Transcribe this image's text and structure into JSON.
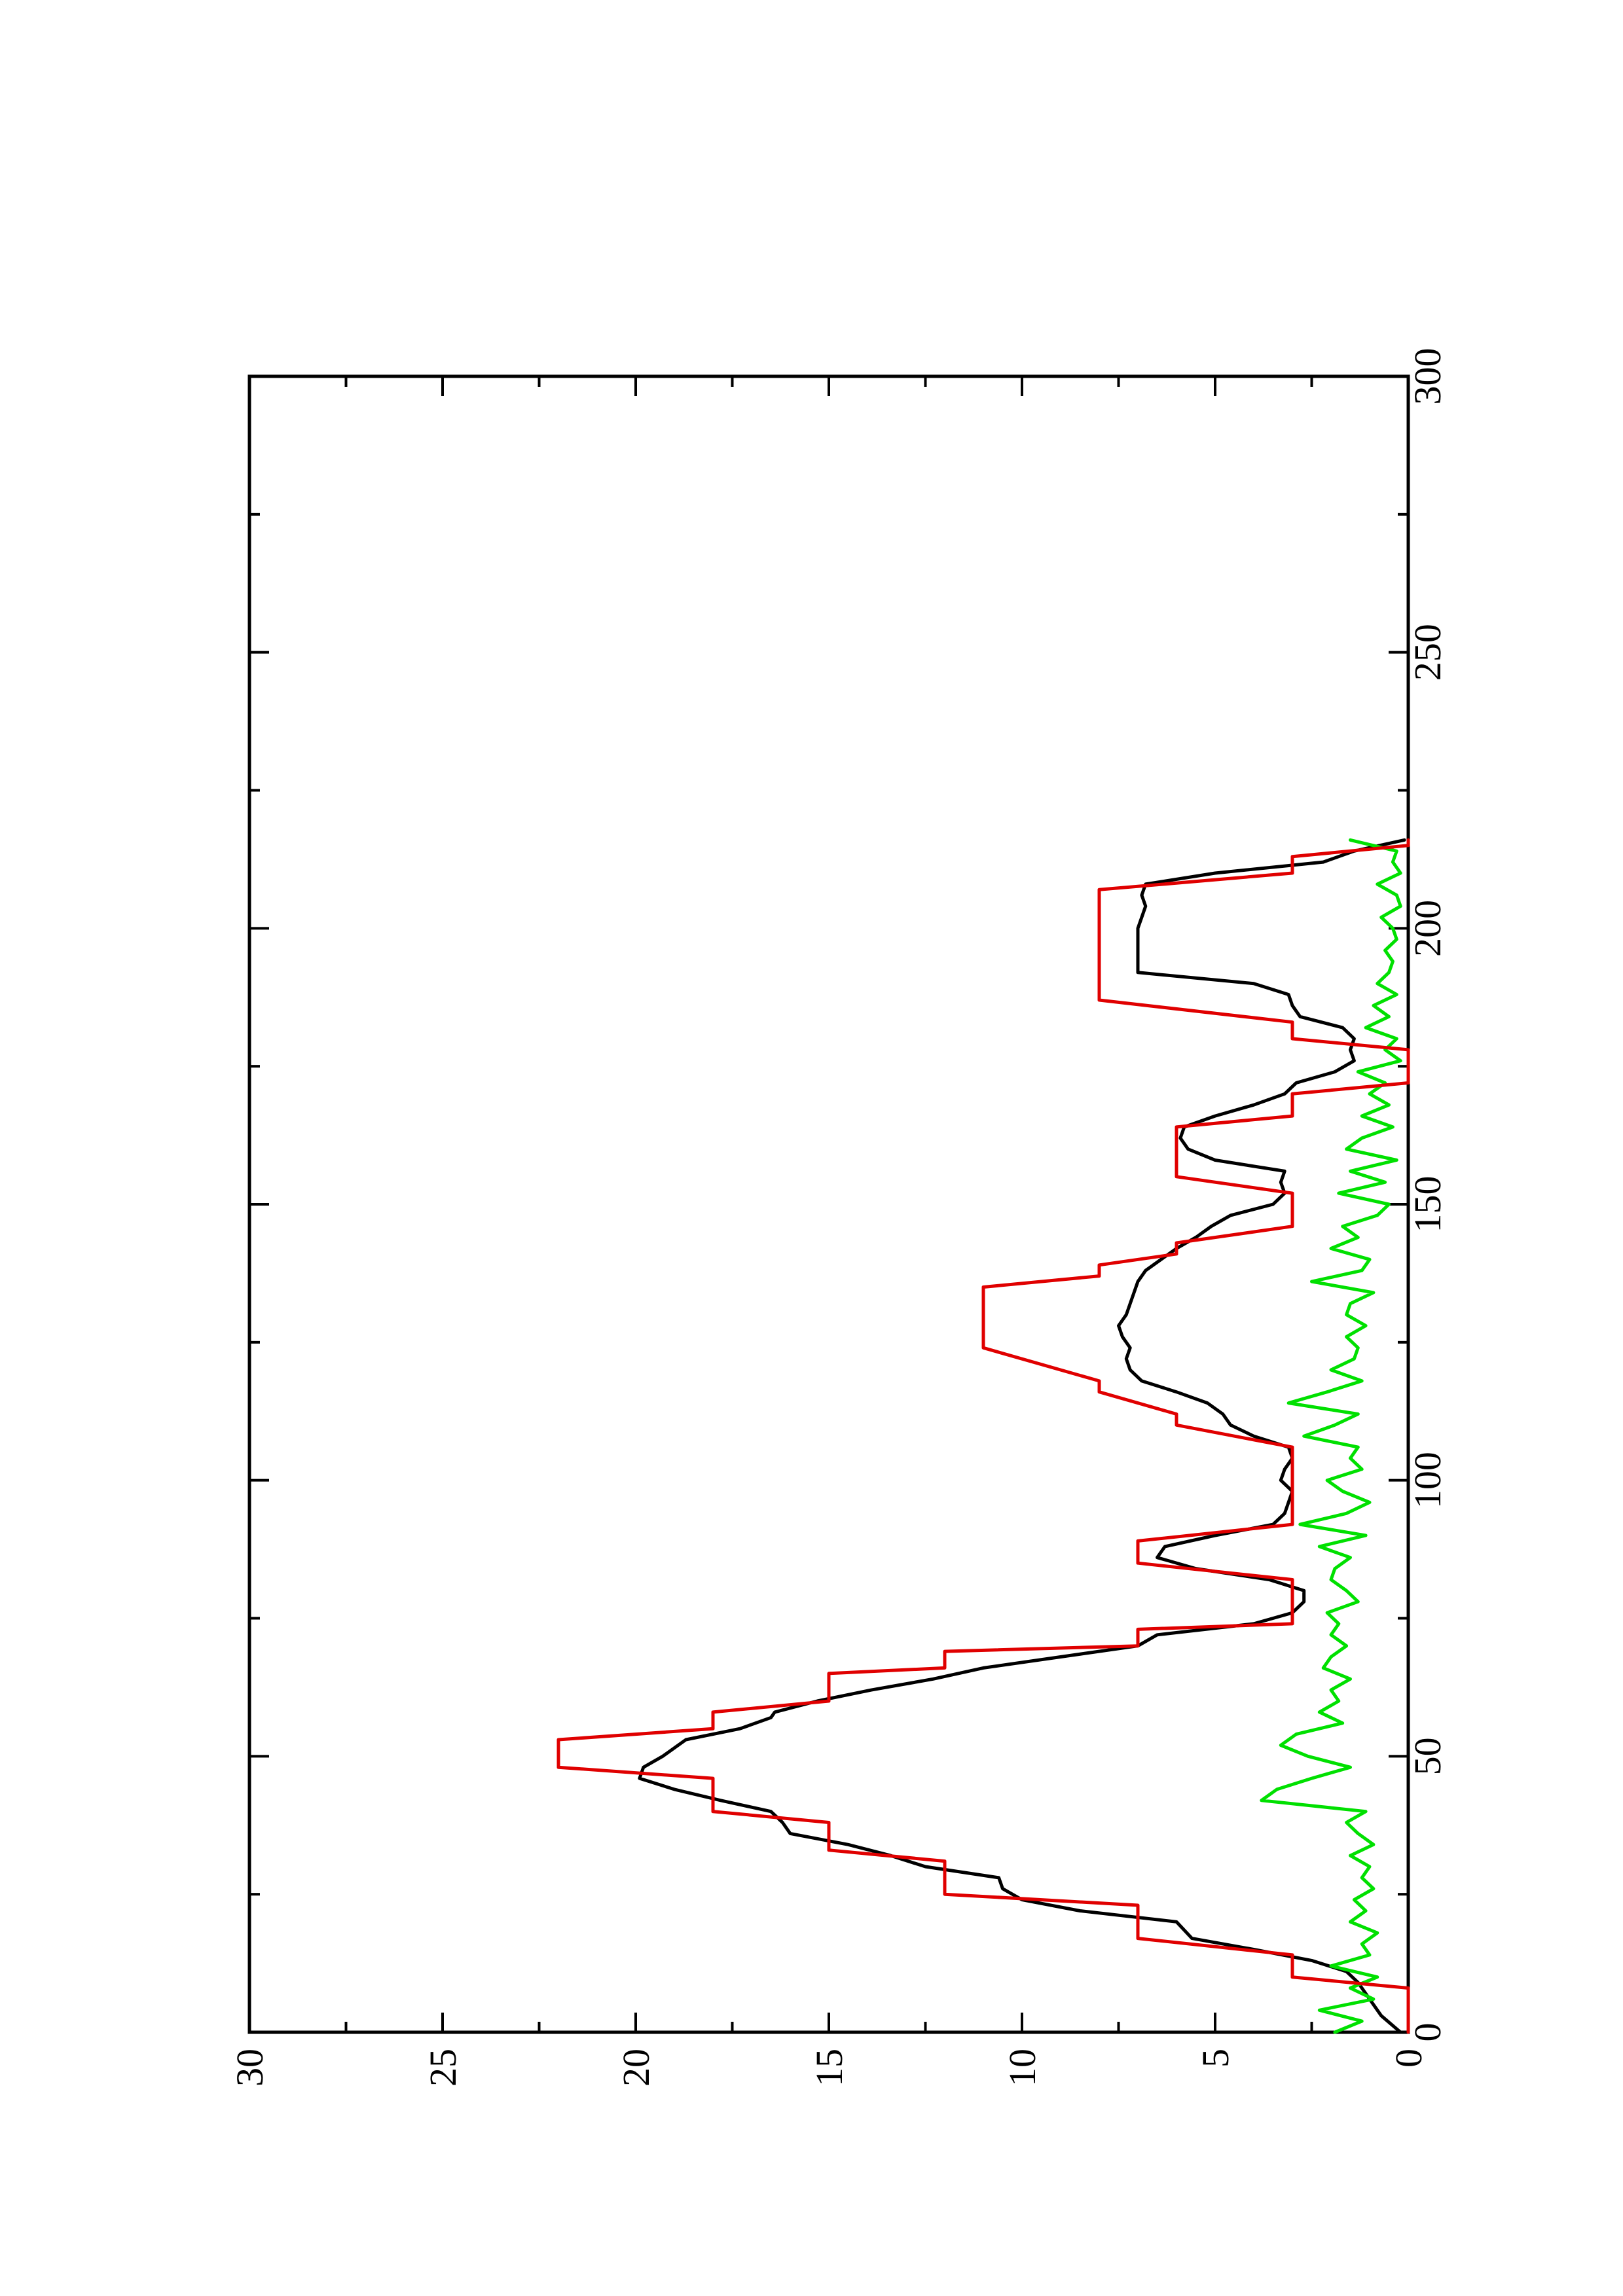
{
  "chart_data": {
    "type": "line",
    "orientation": "rotated-90-ccw",
    "title": "",
    "xlabel": "",
    "ylabel": "",
    "xlim": [
      0,
      300
    ],
    "ylim": [
      0,
      30
    ],
    "x_ticks": [
      0,
      50,
      100,
      150,
      200,
      250,
      300
    ],
    "x_minor_ticks": [
      25,
      75,
      125,
      175,
      225,
      275
    ],
    "y_ticks": [
      0,
      5,
      10,
      15,
      20,
      25,
      30
    ],
    "y_minor_ticks": [
      2.5,
      7.5,
      12.5,
      17.5,
      22.5,
      27.5
    ],
    "grid": false,
    "legend": "none",
    "series": [
      {
        "color": "#e00000",
        "x": [
          0,
          8,
          10,
          14,
          17,
          23,
          25,
          31,
          33,
          38,
          40,
          46,
          48,
          53,
          55,
          58,
          60,
          65,
          66,
          69,
          70,
          73,
          74,
          78,
          79,
          82,
          85,
          88,
          89,
          92,
          93,
          95,
          100,
          105,
          106,
          110,
          112,
          116,
          118,
          124,
          130,
          135,
          137,
          139,
          141,
          143,
          146,
          150,
          152,
          155,
          157,
          162,
          164,
          166,
          168,
          170,
          172,
          175,
          178,
          180,
          183,
          187,
          190,
          195,
          200,
          205,
          207,
          210,
          211,
          213,
          215,
          216
        ],
        "y": [
          0,
          0,
          3,
          3,
          7,
          7,
          12,
          12,
          15,
          15,
          18,
          18,
          22,
          22,
          18,
          18,
          15,
          15,
          12,
          12,
          7,
          7,
          3,
          3,
          3,
          3,
          7,
          7,
          7,
          3,
          3,
          3,
          3,
          3,
          3,
          6,
          6,
          8,
          8,
          11,
          11,
          11,
          8,
          8,
          6,
          6,
          3,
          3,
          3,
          6,
          6,
          6,
          6,
          3,
          3,
          3,
          0,
          0,
          0,
          3,
          3,
          8,
          8,
          8,
          8,
          8,
          8,
          3,
          3,
          3,
          0,
          0
        ]
      },
      {
        "color": "#000000",
        "x": [
          0,
          3,
          6,
          9,
          11,
          13,
          15,
          17,
          20,
          22,
          24,
          26,
          28,
          30,
          32,
          34,
          36,
          38,
          40,
          42,
          44,
          46,
          48,
          50,
          53,
          55,
          57,
          58,
          60,
          62,
          64,
          66,
          68,
          70,
          72,
          74,
          76,
          78,
          80,
          82,
          84,
          86,
          88,
          90,
          92,
          94,
          96,
          98,
          100,
          102,
          104,
          106,
          108,
          110,
          112,
          114,
          116,
          118,
          120,
          122,
          124,
          126,
          128,
          130,
          132,
          134,
          136,
          138,
          140,
          142,
          144,
          146,
          148,
          150,
          152,
          154,
          156,
          158,
          160,
          162,
          164,
          166,
          168,
          170,
          172,
          174,
          176,
          178,
          180,
          182,
          184,
          186,
          188,
          190,
          192,
          194,
          196,
          198,
          200,
          202,
          204,
          206,
          208,
          210,
          212,
          214,
          216
        ],
        "y": [
          0.2,
          0.7,
          1.0,
          1.3,
          1.6,
          2.5,
          4.0,
          5.6,
          6.0,
          8.5,
          10.0,
          10.5,
          10.6,
          12.5,
          13.4,
          14.5,
          16.0,
          16.2,
          16.5,
          17.8,
          19.0,
          19.9,
          19.8,
          19.3,
          18.7,
          17.3,
          16.5,
          16.4,
          15.3,
          13.9,
          12.3,
          11.0,
          9.0,
          7.0,
          6.5,
          4.0,
          3.0,
          2.7,
          2.7,
          3.6,
          5.5,
          6.5,
          6.3,
          5.0,
          3.5,
          3.2,
          3.1,
          3.0,
          3.3,
          3.2,
          3.0,
          3.1,
          4.0,
          4.6,
          4.8,
          5.2,
          6.0,
          6.9,
          7.2,
          7.3,
          7.2,
          7.4,
          7.5,
          7.3,
          7.2,
          7.1,
          7.0,
          6.8,
          6.4,
          6.0,
          5.5,
          5.1,
          4.6,
          3.5,
          3.2,
          3.3,
          3.2,
          5.0,
          5.7,
          5.9,
          5.8,
          5.0,
          4.0,
          3.2,
          2.9,
          1.9,
          1.4,
          1.5,
          1.4,
          1.7,
          2.8,
          3.0,
          3.1,
          4.0,
          7.0,
          7.0,
          7.0,
          7.0,
          7.0,
          6.9,
          6.8,
          6.9,
          6.8,
          5.0,
          2.2,
          1.4,
          0.1
        ]
      },
      {
        "color": "#00e000",
        "x": [
          0,
          2,
          4,
          6,
          8,
          10,
          12,
          14,
          16,
          18,
          20,
          22,
          24,
          26,
          28,
          30,
          32,
          34,
          36,
          38,
          40,
          42,
          44,
          46,
          48,
          50,
          52,
          54,
          56,
          58,
          60,
          62,
          64,
          66,
          68,
          70,
          72,
          74,
          76,
          78,
          80,
          82,
          84,
          86,
          88,
          90,
          92,
          94,
          96,
          98,
          100,
          102,
          104,
          106,
          108,
          110,
          112,
          114,
          116,
          118,
          120,
          122,
          124,
          126,
          128,
          130,
          132,
          134,
          136,
          138,
          140,
          142,
          144,
          146,
          148,
          150,
          152,
          154,
          156,
          158,
          160,
          162,
          164,
          166,
          168,
          170,
          172,
          174,
          176,
          178,
          180,
          182,
          184,
          186,
          188,
          190,
          192,
          194,
          196,
          198,
          200,
          202,
          204,
          206,
          208,
          210,
          212,
          214,
          216
        ],
        "y": [
          1.9,
          1.2,
          2.3,
          0.9,
          1.5,
          0.8,
          2.0,
          1.0,
          1.2,
          0.8,
          1.5,
          1.1,
          1.4,
          0.9,
          1.2,
          1.0,
          1.5,
          0.9,
          1.3,
          1.6,
          1.1,
          3.8,
          3.4,
          2.5,
          1.5,
          2.6,
          3.3,
          2.9,
          1.7,
          2.3,
          1.8,
          2.0,
          1.5,
          2.2,
          2.0,
          1.6,
          2.0,
          1.8,
          2.1,
          1.3,
          1.6,
          2.0,
          1.9,
          1.5,
          2.3,
          1.1,
          2.8,
          1.6,
          1.0,
          1.7,
          2.1,
          1.2,
          1.5,
          1.3,
          2.7,
          1.9,
          1.3,
          3.1,
          2.1,
          1.2,
          2.0,
          1.4,
          1.3,
          1.6,
          1.1,
          1.6,
          1.5,
          0.9,
          2.5,
          1.2,
          1.0,
          2.0,
          1.3,
          1.7,
          0.8,
          0.5,
          1.8,
          0.6,
          1.5,
          0.3,
          1.6,
          1.2,
          0.4,
          1.2,
          0.5,
          1.0,
          0.6,
          1.3,
          0.2,
          0.6,
          0.3,
          1.1,
          0.5,
          0.9,
          0.3,
          0.8,
          0.5,
          0.4,
          0.6,
          0.3,
          0.4,
          0.7,
          0.2,
          0.3,
          0.8,
          0.2,
          0.4,
          0.3,
          1.5
        ]
      }
    ]
  }
}
